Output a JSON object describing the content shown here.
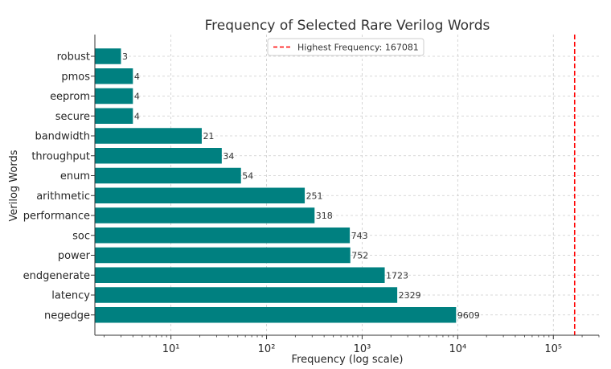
{
  "chart_data": {
    "type": "bar",
    "orientation": "horizontal",
    "title": "Frequency of Selected Rare Verilog Words",
    "xlabel": "Frequency (log scale)",
    "ylabel": "Verilog Words",
    "x_scale": "log",
    "xlim": [
      1.6,
      300000
    ],
    "x_ticks": [
      10,
      100,
      1000,
      10000,
      100000
    ],
    "x_tick_labels": [
      "10¹",
      "10²",
      "10³",
      "10⁴",
      "10⁵"
    ],
    "categories": [
      "robust",
      "pmos",
      "eeprom",
      "secure",
      "bandwidth",
      "throughput",
      "enum",
      "arithmetic",
      "performance",
      "soc",
      "power",
      "endgenerate",
      "latency",
      "negedge"
    ],
    "values": [
      3,
      4,
      4,
      4,
      21,
      34,
      54,
      251,
      318,
      743,
      752,
      1723,
      2329,
      9609
    ],
    "bar_color": "#008080",
    "grid": true,
    "reference_line": {
      "value": 167081,
      "color": "#ff0000",
      "style": "dashed"
    },
    "legend": {
      "label": "Highest Frequency: 167081",
      "position": "top-center"
    }
  }
}
